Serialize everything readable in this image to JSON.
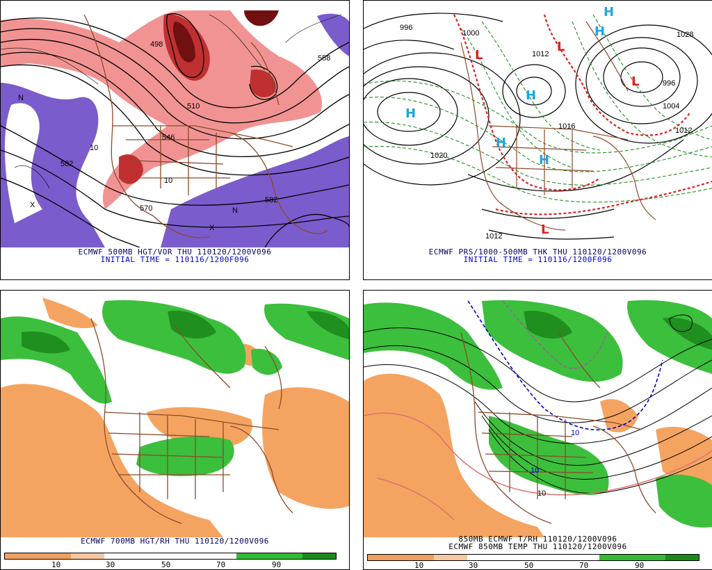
{
  "panels": {
    "tl": {
      "caption1": "ECMWF 500MB HGT/VOR THU 110120/1200V096",
      "caption2": "INITIAL TIME = 110116/1200F096",
      "labels": [
        "582",
        "582",
        "570",
        "546",
        "510",
        "498",
        "558",
        "10",
        "10",
        "N",
        "N",
        "X",
        "X"
      ]
    },
    "tr": {
      "caption1": "ECMWF PRS/1000-500MB THK THU 110120/1200V096",
      "caption2": "INITIAL TIME = 110116/1200F096",
      "highs": [
        "H",
        "H",
        "H",
        "H",
        "H",
        "H"
      ],
      "lows": [
        "L",
        "L",
        "L",
        "L"
      ],
      "isobars": [
        "996",
        "1028",
        "1012",
        "1004",
        "996",
        "1020",
        "1012",
        "1000",
        "1016",
        "1012"
      ]
    },
    "bl": {
      "caption1": "ECMWF 700MB HGT/RH THU 110120/1200V096"
    },
    "br": {
      "caption1": "850MB ECMWF T/RH 110120/1200V096",
      "caption2": "ECMWF 850MB TEMP THU 110120/1200V096",
      "labels": [
        "10",
        "10",
        "10"
      ]
    }
  },
  "scale": {
    "ticks": [
      "10",
      "30",
      "50",
      "70",
      "90"
    ],
    "colors": [
      "#f0a060",
      "#f0a060",
      "#f7c8a0",
      "#ffffff",
      "#ffffff",
      "#ffffff",
      "#ffffff",
      "#33bb33",
      "#33bb33",
      "#1a8a1a"
    ]
  },
  "colors": {
    "vort_light": "#f08080",
    "vort_dark": "#b02020",
    "vort_neg": "#7a5ccc",
    "rh_green": "#3cbf3c",
    "rh_dkgreen": "#1f8f1f",
    "rh_dry": "#f4a460",
    "border": "#8b4a2b",
    "high": "#19a8e0",
    "low": "#e02020"
  }
}
